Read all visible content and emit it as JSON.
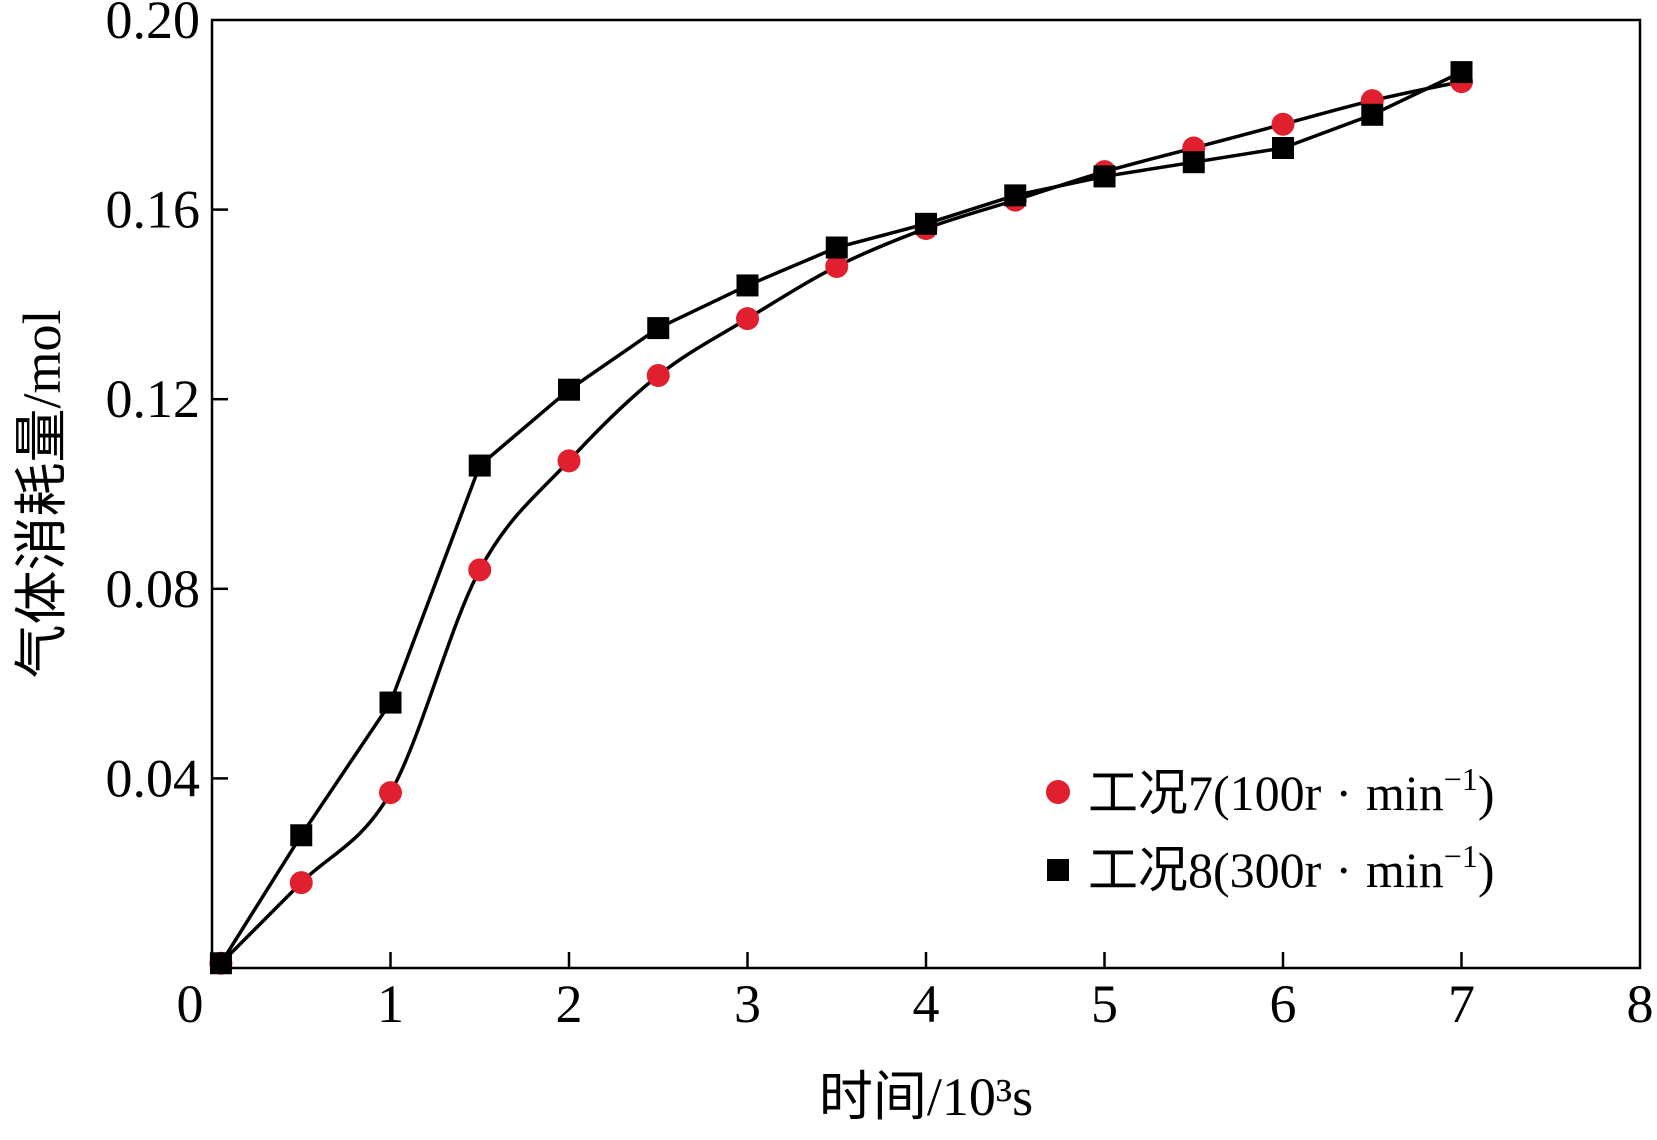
{
  "chart_data": {
    "type": "line",
    "xlabel": "时间/10³s",
    "ylabel": "气体消耗量/mol",
    "xlim": [
      0,
      8
    ],
    "ylim": [
      0,
      0.2
    ],
    "x_ticks": [
      0,
      1,
      2,
      3,
      4,
      5,
      6,
      7,
      8
    ],
    "x_tick_labels": [
      "0",
      "1",
      "2",
      "3",
      "4",
      "5",
      "6",
      "7",
      "8"
    ],
    "y_ticks": [
      0.04,
      0.08,
      0.12,
      0.16,
      0.2
    ],
    "y_tick_labels": [
      "0.04",
      "0.08",
      "0.12",
      "0.16",
      "0.20"
    ],
    "grid": false,
    "legend_position": "bottom-right",
    "series": [
      {
        "name": "工况7(100r · min⁻¹)",
        "name_main": "工况7(100r",
        "name_dot": "·",
        "name_unit": "min",
        "name_exp": "−1",
        "name_close": ")",
        "marker": "circle",
        "marker_color": "#e0202e",
        "line_color": "#000000",
        "x": [
          0.05,
          0.5,
          1.0,
          1.5,
          2.0,
          2.5,
          3.0,
          3.5,
          4.0,
          4.5,
          5.0,
          5.5,
          6.0,
          6.5,
          7.0
        ],
        "y": [
          0.001,
          0.018,
          0.037,
          0.084,
          0.107,
          0.125,
          0.137,
          0.148,
          0.156,
          0.162,
          0.168,
          0.173,
          0.178,
          0.183,
          0.187
        ]
      },
      {
        "name": "工况8(300r · min⁻¹)",
        "name_main": "工况8(300r",
        "name_dot": "·",
        "name_unit": "min",
        "name_exp": "−1",
        "name_close": ")",
        "marker": "square",
        "marker_color": "#000000",
        "line_color": "#000000",
        "x": [
          0.05,
          0.5,
          1.0,
          1.5,
          2.0,
          2.5,
          3.0,
          3.5,
          4.0,
          4.5,
          5.0,
          5.5,
          6.0,
          6.5,
          7.0
        ],
        "y": [
          0.001,
          0.028,
          0.056,
          0.106,
          0.122,
          0.135,
          0.144,
          0.152,
          0.157,
          0.163,
          0.167,
          0.17,
          0.173,
          0.18,
          0.189
        ]
      }
    ]
  }
}
